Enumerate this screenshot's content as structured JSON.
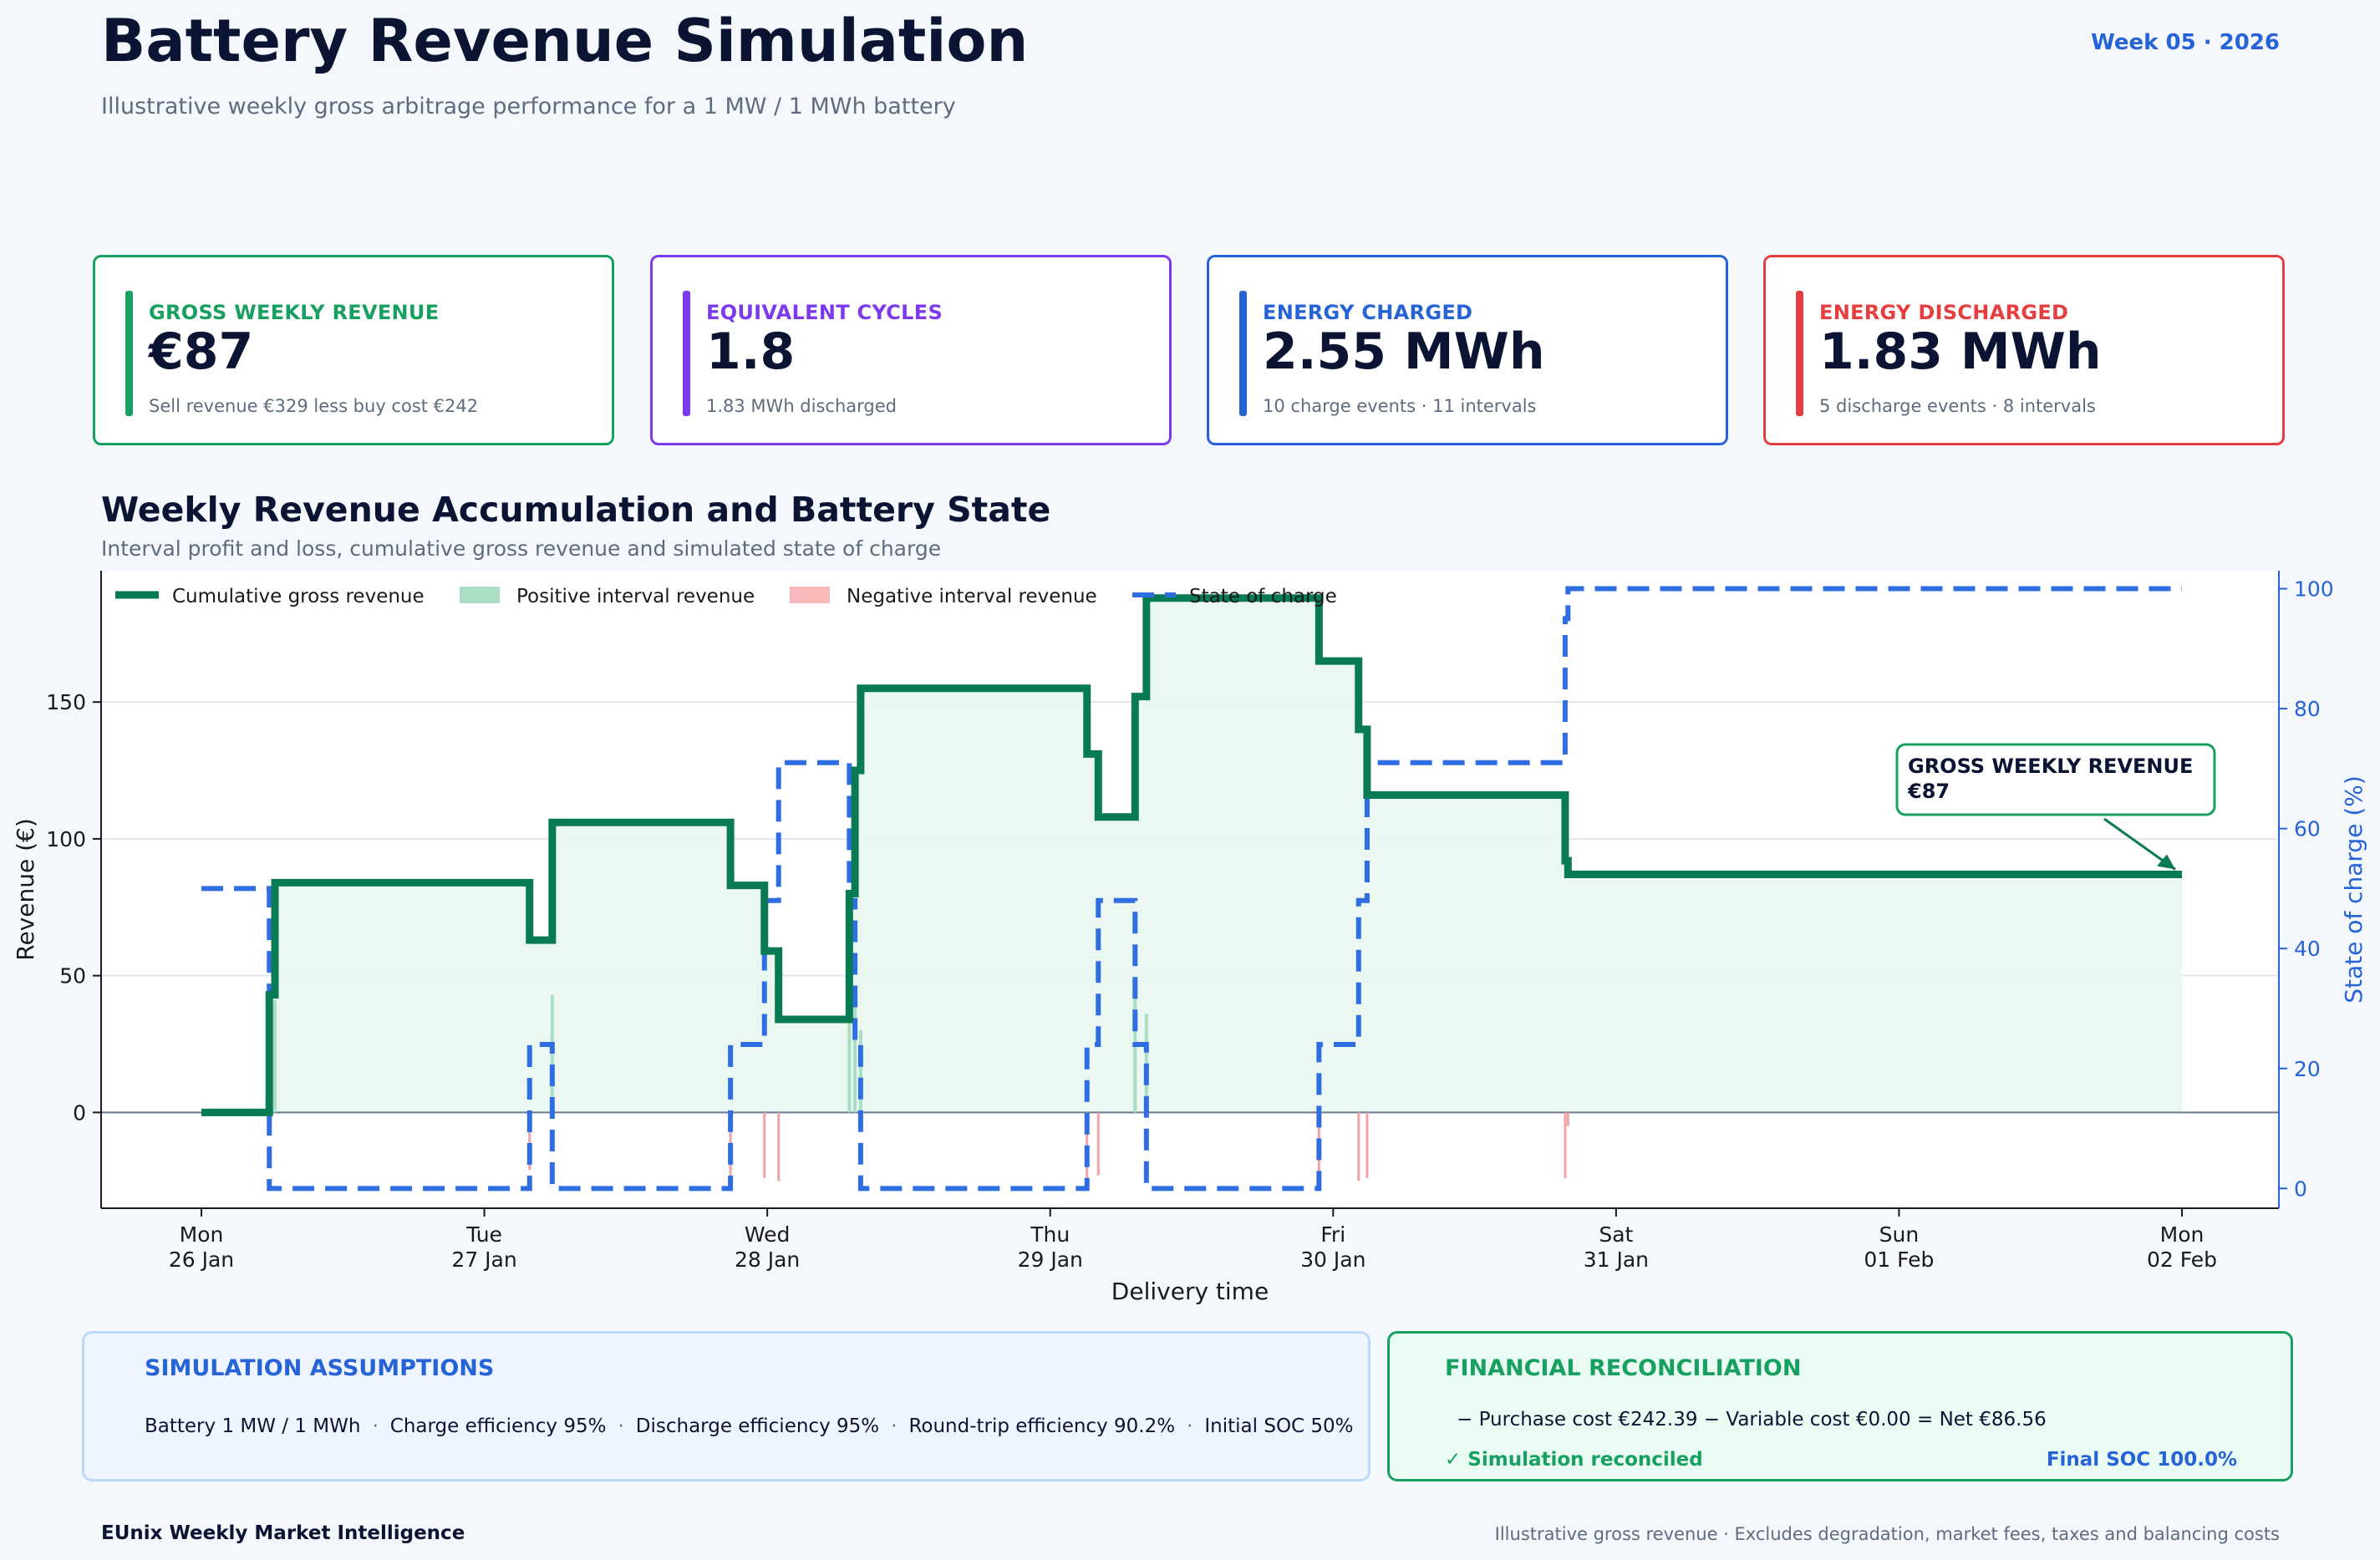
{
  "header": {
    "title": "Battery Revenue Simulation",
    "subtitle": "Illustrative weekly gross arbitrage performance for a 1 MW / 1 MWh battery",
    "week": "Week 05 · 2026"
  },
  "kpis": [
    {
      "label": "GROSS WEEKLY REVENUE",
      "value": "€87",
      "sub": "Sell revenue €329 less buy cost €242",
      "color": "#17a060"
    },
    {
      "label": "EQUIVALENT CYCLES",
      "value": "1.8",
      "sub": "1.83 MWh discharged",
      "color": "#7c3aed"
    },
    {
      "label": "ENERGY CHARGED",
      "value": "2.55 MWh",
      "sub": "10 charge events · 11 intervals",
      "color": "#2563d6"
    },
    {
      "label": "ENERGY DISCHARGED",
      "value": "1.83 MWh",
      "sub": "5 discharge events · 8 intervals",
      "color": "#e53e3e"
    }
  ],
  "section": {
    "title": "Weekly Revenue Accumulation and Battery State",
    "subtitle": "Interval profit and loss, cumulative gross revenue and simulated state of charge"
  },
  "chart_data": {
    "type": "line",
    "xlabel": "Delivery time",
    "ylabel": "Revenue (€)",
    "y2label": "State of charge (%)",
    "xlim": [
      0,
      7
    ],
    "ylim": [
      -35,
      198
    ],
    "y2lim": [
      -3.3,
      103
    ],
    "yticks": [
      0,
      50,
      100,
      150
    ],
    "y2ticks": [
      0,
      20,
      40,
      60,
      80,
      100
    ],
    "xticks": [
      {
        "x": 0,
        "line1": "Mon",
        "line2": "26 Jan"
      },
      {
        "x": 1,
        "line1": "Tue",
        "line2": "27 Jan"
      },
      {
        "x": 2,
        "line1": "Wed",
        "line2": "28 Jan"
      },
      {
        "x": 3,
        "line1": "Thu",
        "line2": "29 Jan"
      },
      {
        "x": 4,
        "line1": "Fri",
        "line2": "30 Jan"
      },
      {
        "x": 5,
        "line1": "Sat",
        "line2": "31 Jan"
      },
      {
        "x": 6,
        "line1": "Sun",
        "line2": "01 Feb"
      },
      {
        "x": 7,
        "line1": "Mon",
        "line2": "02 Feb"
      }
    ],
    "legend": {
      "placement": "top-left",
      "items": [
        {
          "label": "Cumulative gross revenue",
          "color": "#087a54",
          "kind": "line"
        },
        {
          "label": "Positive interval revenue",
          "color": "#a9dec4",
          "kind": "patch"
        },
        {
          "label": "Negative interval revenue",
          "color": "#f7b9b9",
          "kind": "patch"
        },
        {
          "label": "State of charge",
          "color": "#2f6ee2",
          "kind": "dash"
        }
      ]
    },
    "series": [
      {
        "name": "Cumulative gross revenue",
        "color": "#087a54",
        "points": [
          [
            0,
            0
          ],
          [
            0.24,
            0
          ],
          [
            0.24,
            43
          ],
          [
            0.26,
            43
          ],
          [
            0.26,
            84
          ],
          [
            1.16,
            84
          ],
          [
            1.16,
            63
          ],
          [
            1.24,
            63
          ],
          [
            1.24,
            106
          ],
          [
            1.87,
            106
          ],
          [
            1.87,
            83
          ],
          [
            1.99,
            83
          ],
          [
            1.99,
            59
          ],
          [
            2.04,
            59
          ],
          [
            2.04,
            34
          ],
          [
            2.29,
            34
          ],
          [
            2.29,
            80
          ],
          [
            2.31,
            80
          ],
          [
            2.31,
            125
          ],
          [
            2.33,
            125
          ],
          [
            2.33,
            155
          ],
          [
            3.13,
            155
          ],
          [
            3.13,
            131
          ],
          [
            3.17,
            131
          ],
          [
            3.17,
            108
          ],
          [
            3.3,
            108
          ],
          [
            3.3,
            152
          ],
          [
            3.34,
            152
          ],
          [
            3.34,
            188
          ],
          [
            3.95,
            188
          ],
          [
            3.95,
            165
          ],
          [
            4.09,
            165
          ],
          [
            4.09,
            140
          ],
          [
            4.12,
            140
          ],
          [
            4.12,
            116
          ],
          [
            4.82,
            116
          ],
          [
            4.82,
            92
          ],
          [
            4.83,
            92
          ],
          [
            4.83,
            87
          ],
          [
            7,
            87
          ]
        ]
      },
      {
        "name": "State of charge",
        "color": "#2f6ee2",
        "points": [
          [
            0,
            50
          ],
          [
            0.24,
            50
          ],
          [
            0.24,
            0
          ],
          [
            1.16,
            0
          ],
          [
            1.16,
            24
          ],
          [
            1.24,
            24
          ],
          [
            1.24,
            0
          ],
          [
            1.87,
            0
          ],
          [
            1.87,
            24
          ],
          [
            1.99,
            24
          ],
          [
            1.99,
            48
          ],
          [
            2.04,
            48
          ],
          [
            2.04,
            71
          ],
          [
            2.29,
            71
          ],
          [
            2.29,
            48
          ],
          [
            2.31,
            48
          ],
          [
            2.31,
            24
          ],
          [
            2.33,
            24
          ],
          [
            2.33,
            0
          ],
          [
            3.13,
            0
          ],
          [
            3.13,
            24
          ],
          [
            3.17,
            24
          ],
          [
            3.17,
            48
          ],
          [
            3.3,
            48
          ],
          [
            3.3,
            24
          ],
          [
            3.34,
            24
          ],
          [
            3.34,
            0
          ],
          [
            3.95,
            0
          ],
          [
            3.95,
            24
          ],
          [
            4.09,
            24
          ],
          [
            4.09,
            48
          ],
          [
            4.12,
            48
          ],
          [
            4.12,
            71
          ],
          [
            4.82,
            71
          ],
          [
            4.82,
            95
          ],
          [
            4.83,
            95
          ],
          [
            4.83,
            100
          ],
          [
            7,
            100
          ]
        ]
      }
    ],
    "interval_positive": [
      [
        0.24,
        43
      ],
      [
        0.26,
        41
      ],
      [
        1.24,
        43
      ],
      [
        2.29,
        46
      ],
      [
        2.31,
        45
      ],
      [
        2.33,
        30
      ],
      [
        3.3,
        44
      ],
      [
        3.34,
        36
      ]
    ],
    "interval_negative": [
      [
        1.16,
        -21
      ],
      [
        1.87,
        -23
      ],
      [
        1.99,
        -24
      ],
      [
        2.04,
        -25
      ],
      [
        3.13,
        -24
      ],
      [
        3.17,
        -23
      ],
      [
        3.95,
        -23
      ],
      [
        4.09,
        -25
      ],
      [
        4.12,
        -24
      ],
      [
        4.82,
        -24
      ],
      [
        4.83,
        -5
      ]
    ],
    "annotation": {
      "line1": "GROSS WEEKLY REVENUE",
      "line2": "€87",
      "x": 7,
      "y": 87
    }
  },
  "assumptions": {
    "title": "SIMULATION ASSUMPTIONS",
    "items": [
      "Battery 1 MW / 1 MWh",
      "Charge efficiency 95%",
      "Discharge efficiency 95%",
      "Round-trip efficiency 90.2%",
      "Initial SOC 50%"
    ]
  },
  "reconciliation": {
    "title": "FINANCIAL RECONCILIATION",
    "formula": "−  Purchase cost €242.39  −  Variable cost €0.00  =  Net €86.56",
    "status": "✓ Simulation reconciled",
    "final_soc": "Final SOC 100.0%"
  },
  "footer": {
    "left": "EUnix Weekly Market Intelligence",
    "right": "Illustrative gross revenue · Excludes degradation, market fees, taxes and balancing costs"
  }
}
